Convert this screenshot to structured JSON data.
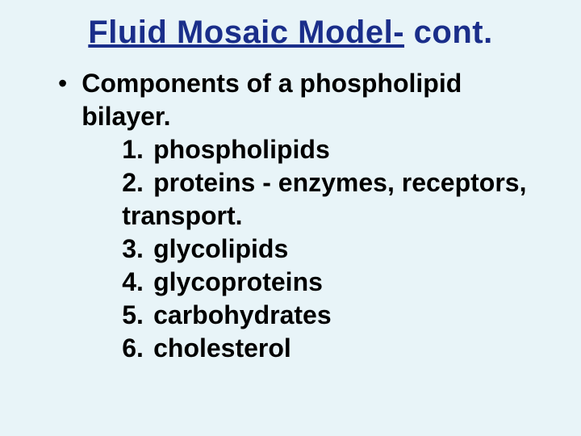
{
  "slide": {
    "background_color": "#e8f4f8",
    "title": {
      "underlined_part": "Fluid Mosaic Model-",
      "rest": " cont.",
      "color": "#1a2e8a",
      "fontsize": 40,
      "font_weight": "bold"
    },
    "bullet_char": "•",
    "main_line1": "Components of a phospholipid",
    "main_line2": "bilayer.",
    "items": [
      {
        "num": "1.",
        "text": "phospholipids"
      },
      {
        "num": "2.",
        "text": "proteins - enzymes, receptors,"
      },
      {
        "continuation": "transport."
      },
      {
        "num": "3.",
        "text": "glycolipids"
      },
      {
        "num": "4.",
        "text": "glycoproteins"
      },
      {
        "num": "5.",
        "text": "carbohydrates"
      },
      {
        "num": "6.",
        "text": "cholesterol"
      }
    ],
    "body_fontsize": 32,
    "body_color": "#000000",
    "body_font_weight": "bold"
  }
}
